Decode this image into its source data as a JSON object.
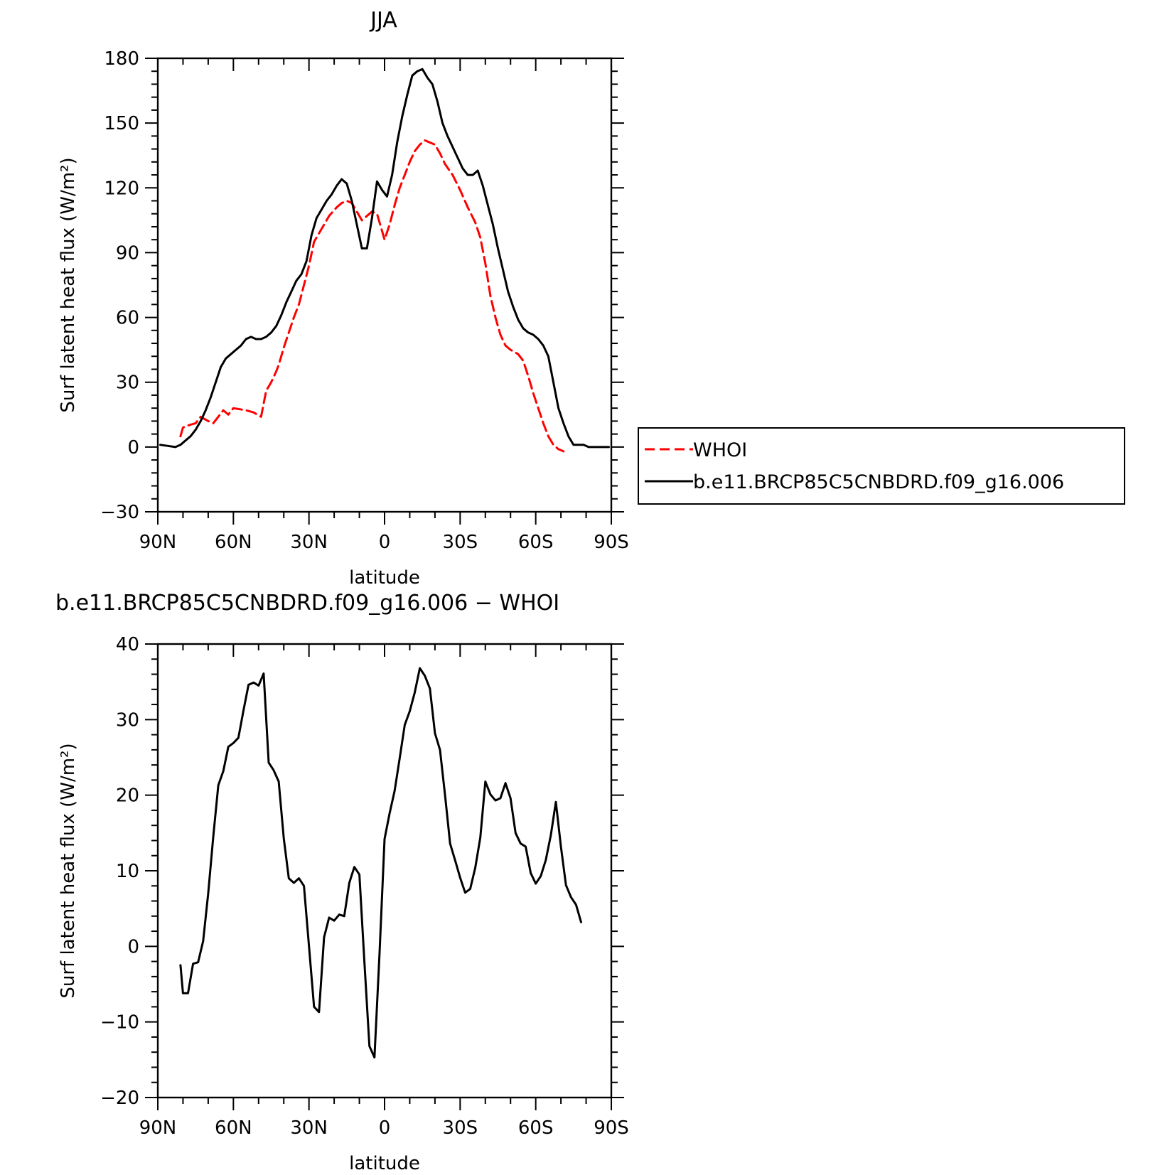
{
  "chart_data": [
    {
      "type": "line",
      "title": "JJA",
      "xlabel": "latitude",
      "ylabel": "Surf latent heat flux (W/m²)",
      "xlim": [
        90,
        -90
      ],
      "ylim": [
        -30,
        180
      ],
      "xticks": [
        90,
        60,
        30,
        0,
        -30,
        -60,
        -90
      ],
      "xtick_labels": [
        "90N",
        "60N",
        "30N",
        "0",
        "30S",
        "60S",
        "90S"
      ],
      "yticks": [
        -30,
        0,
        30,
        60,
        90,
        120,
        150,
        180
      ],
      "ytick_labels": [
        "−30",
        "0",
        "30",
        "60",
        "90",
        "120",
        "150",
        "180"
      ],
      "legend_position": "right",
      "series": [
        {
          "name": "WHOI",
          "color": "#ff0000",
          "dash": "dashed",
          "points": [
            [
              81,
              5
            ],
            [
              80,
              9
            ],
            [
              78,
              10
            ],
            [
              75,
              11
            ],
            [
              73,
              14
            ],
            [
              70,
              12
            ],
            [
              68,
              11
            ],
            [
              66,
              14
            ],
            [
              64,
              17
            ],
            [
              62,
              15
            ],
            [
              60,
              18
            ],
            [
              55,
              17
            ],
            [
              52,
              16
            ],
            [
              49,
              14
            ],
            [
              47,
              26
            ],
            [
              45,
              30
            ],
            [
              43,
              35
            ],
            [
              42,
              38
            ],
            [
              40,
              46
            ],
            [
              38,
              53
            ],
            [
              36,
              60
            ],
            [
              34,
              66
            ],
            [
              32,
              75
            ],
            [
              30,
              84
            ],
            [
              28,
              95
            ],
            [
              25,
              101
            ],
            [
              22,
              107
            ],
            [
              19,
              111
            ],
            [
              17,
              113
            ],
            [
              15,
              114
            ],
            [
              13,
              113
            ],
            [
              11,
              109
            ],
            [
              9,
              105
            ],
            [
              7,
              107
            ],
            [
              5,
              109
            ],
            [
              3,
              108
            ],
            [
              1,
              100
            ],
            [
              0,
              96
            ],
            [
              -2,
              103
            ],
            [
              -4,
              112
            ],
            [
              -6,
              120
            ],
            [
              -8,
              126
            ],
            [
              -10,
              132
            ],
            [
              -12,
              137
            ],
            [
              -14,
              140
            ],
            [
              -16,
              142
            ],
            [
              -18,
              141
            ],
            [
              -20,
              140
            ],
            [
              -22,
              136
            ],
            [
              -24,
              131
            ],
            [
              -27,
              126
            ],
            [
              -30,
              119
            ],
            [
              -33,
              111
            ],
            [
              -36,
              104
            ],
            [
              -38,
              97
            ],
            [
              -40,
              85
            ],
            [
              -42,
              70
            ],
            [
              -44,
              60
            ],
            [
              -46,
              52
            ],
            [
              -48,
              47
            ],
            [
              -50,
              45
            ],
            [
              -53,
              43
            ],
            [
              -55,
              40
            ],
            [
              -57,
              33
            ],
            [
              -59,
              25
            ],
            [
              -61,
              18
            ],
            [
              -63,
              11
            ],
            [
              -65,
              5
            ],
            [
              -67,
              1
            ],
            [
              -69,
              -1
            ],
            [
              -71,
              -2
            ]
          ]
        },
        {
          "name": "b.e11.BRCP85C5CNBDRD.f09_g16.006",
          "color": "#000000",
          "dash": "solid",
          "points": [
            [
              89,
              1
            ],
            [
              86,
              0.5
            ],
            [
              83,
              0
            ],
            [
              81,
              1
            ],
            [
              79,
              3
            ],
            [
              77,
              5
            ],
            [
              75,
              8
            ],
            [
              73,
              12
            ],
            [
              71,
              17
            ],
            [
              69,
              23
            ],
            [
              67,
              30
            ],
            [
              65,
              37
            ],
            [
              63,
              41
            ],
            [
              61,
              43
            ],
            [
              59,
              45
            ],
            [
              57,
              47
            ],
            [
              55,
              50
            ],
            [
              53,
              51
            ],
            [
              51,
              50
            ],
            [
              49,
              50
            ],
            [
              47,
              51
            ],
            [
              45,
              53
            ],
            [
              43,
              56
            ],
            [
              41,
              61
            ],
            [
              39,
              67
            ],
            [
              37,
              72
            ],
            [
              35,
              77
            ],
            [
              33,
              80
            ],
            [
              31,
              86
            ],
            [
              29,
              98
            ],
            [
              27,
              106
            ],
            [
              25,
              110
            ],
            [
              23,
              114
            ],
            [
              21,
              117
            ],
            [
              19,
              121
            ],
            [
              17,
              124
            ],
            [
              15,
              122
            ],
            [
              13,
              114
            ],
            [
              11,
              103
            ],
            [
              9,
              92
            ],
            [
              7,
              92
            ],
            [
              5,
              106
            ],
            [
              3,
              123
            ],
            [
              1,
              119
            ],
            [
              -1,
              116
            ],
            [
              -3,
              126
            ],
            [
              -5,
              141
            ],
            [
              -7,
              153
            ],
            [
              -9,
              163
            ],
            [
              -11,
              172
            ],
            [
              -13,
              174
            ],
            [
              -15,
              175
            ],
            [
              -17,
              171
            ],
            [
              -19,
              168
            ],
            [
              -21,
              160
            ],
            [
              -23,
              150
            ],
            [
              -25,
              144
            ],
            [
              -27,
              139
            ],
            [
              -29,
              134
            ],
            [
              -31,
              129
            ],
            [
              -33,
              126
            ],
            [
              -35,
              126
            ],
            [
              -37,
              128
            ],
            [
              -39,
              121
            ],
            [
              -41,
              112
            ],
            [
              -43,
              103
            ],
            [
              -45,
              92
            ],
            [
              -47,
              82
            ],
            [
              -49,
              72
            ],
            [
              -51,
              65
            ],
            [
              -53,
              59
            ],
            [
              -55,
              55
            ],
            [
              -57,
              53
            ],
            [
              -59,
              52
            ],
            [
              -61,
              50
            ],
            [
              -63,
              47
            ],
            [
              -65,
              42
            ],
            [
              -67,
              30
            ],
            [
              -69,
              18
            ],
            [
              -71,
              11
            ],
            [
              -73,
              5
            ],
            [
              -75,
              1
            ],
            [
              -77,
              1
            ],
            [
              -79,
              1
            ],
            [
              -81,
              0
            ],
            [
              -84,
              0
            ],
            [
              -87,
              0
            ],
            [
              -89,
              0
            ]
          ]
        }
      ]
    },
    {
      "type": "line",
      "title": "b.e11.BRCP85C5CNBDRD.f09_g16.006 − WHOI",
      "xlabel": "latitude",
      "ylabel": "Surf latent heat flux (W/m²)",
      "xlim": [
        90,
        -90
      ],
      "ylim": [
        -20,
        40
      ],
      "xticks": [
        90,
        60,
        30,
        0,
        -30,
        -60,
        -90
      ],
      "xtick_labels": [
        "90N",
        "60N",
        "30N",
        "0",
        "30S",
        "60S",
        "90S"
      ],
      "yticks": [
        -20,
        -10,
        0,
        10,
        20,
        30,
        40
      ],
      "ytick_labels": [
        "−20",
        "−10",
        "0",
        "10",
        "20",
        "30",
        "40"
      ],
      "series": [
        {
          "color": "#000000",
          "dash": "solid",
          "points": [
            [
              81,
              -2.5
            ],
            [
              80,
              -6.2
            ],
            [
              78,
              -6.2
            ],
            [
              76,
              -2.3
            ],
            [
              74,
              -2.1
            ],
            [
              72,
              0.7
            ],
            [
              70,
              7
            ],
            [
              68,
              14.5
            ],
            [
              66,
              21.3
            ],
            [
              64,
              23.2
            ],
            [
              62,
              26.4
            ],
            [
              60,
              26.9
            ],
            [
              58,
              27.6
            ],
            [
              56,
              31.2
            ],
            [
              54,
              34.6
            ],
            [
              52,
              34.9
            ],
            [
              50,
              34.5
            ],
            [
              48,
              36.1
            ],
            [
              46,
              24.3
            ],
            [
              44,
              23.3
            ],
            [
              42,
              21.8
            ],
            [
              40,
              14.3
            ],
            [
              38,
              9
            ],
            [
              36,
              8.4
            ],
            [
              34,
              9
            ],
            [
              32,
              8
            ],
            [
              30,
              0
            ],
            [
              28,
              -8
            ],
            [
              26,
              -8.7
            ],
            [
              24,
              1.2
            ],
            [
              22,
              3.8
            ],
            [
              20,
              3.4
            ],
            [
              18,
              4.2
            ],
            [
              16,
              4
            ],
            [
              14,
              8.4
            ],
            [
              12,
              10.5
            ],
            [
              10,
              9.5
            ],
            [
              8,
              -2
            ],
            [
              6,
              -13.2
            ],
            [
              4,
              -14.7
            ],
            [
              2,
              -1
            ],
            [
              0,
              14.2
            ],
            [
              -2,
              17.6
            ],
            [
              -4,
              20.6
            ],
            [
              -6,
              24.9
            ],
            [
              -8,
              29.3
            ],
            [
              -10,
              31.1
            ],
            [
              -12,
              33.6
            ],
            [
              -14,
              36.8
            ],
            [
              -16,
              35.8
            ],
            [
              -18,
              34.1
            ],
            [
              -20,
              28.2
            ],
            [
              -22,
              26
            ],
            [
              -24,
              20
            ],
            [
              -26,
              13.6
            ],
            [
              -28,
              11.4
            ],
            [
              -30,
              9.1
            ],
            [
              -32,
              7.1
            ],
            [
              -34,
              7.6
            ],
            [
              -36,
              10.4
            ],
            [
              -38,
              14.4
            ],
            [
              -40,
              21.8
            ],
            [
              -42,
              20.1
            ],
            [
              -44,
              19.3
            ],
            [
              -46,
              19.6
            ],
            [
              -48,
              21.6
            ],
            [
              -50,
              19.6
            ],
            [
              -52,
              15
            ],
            [
              -54,
              13.6
            ],
            [
              -56,
              13.2
            ],
            [
              -58,
              9.7
            ],
            [
              -60,
              8.3
            ],
            [
              -62,
              9.3
            ],
            [
              -64,
              11.4
            ],
            [
              -66,
              14.7
            ],
            [
              -68,
              19.1
            ],
            [
              -70,
              13.2
            ],
            [
              -72,
              8.1
            ],
            [
              -74,
              6.5
            ],
            [
              -76,
              5.5
            ],
            [
              -78,
              3.2
            ]
          ]
        }
      ]
    }
  ]
}
